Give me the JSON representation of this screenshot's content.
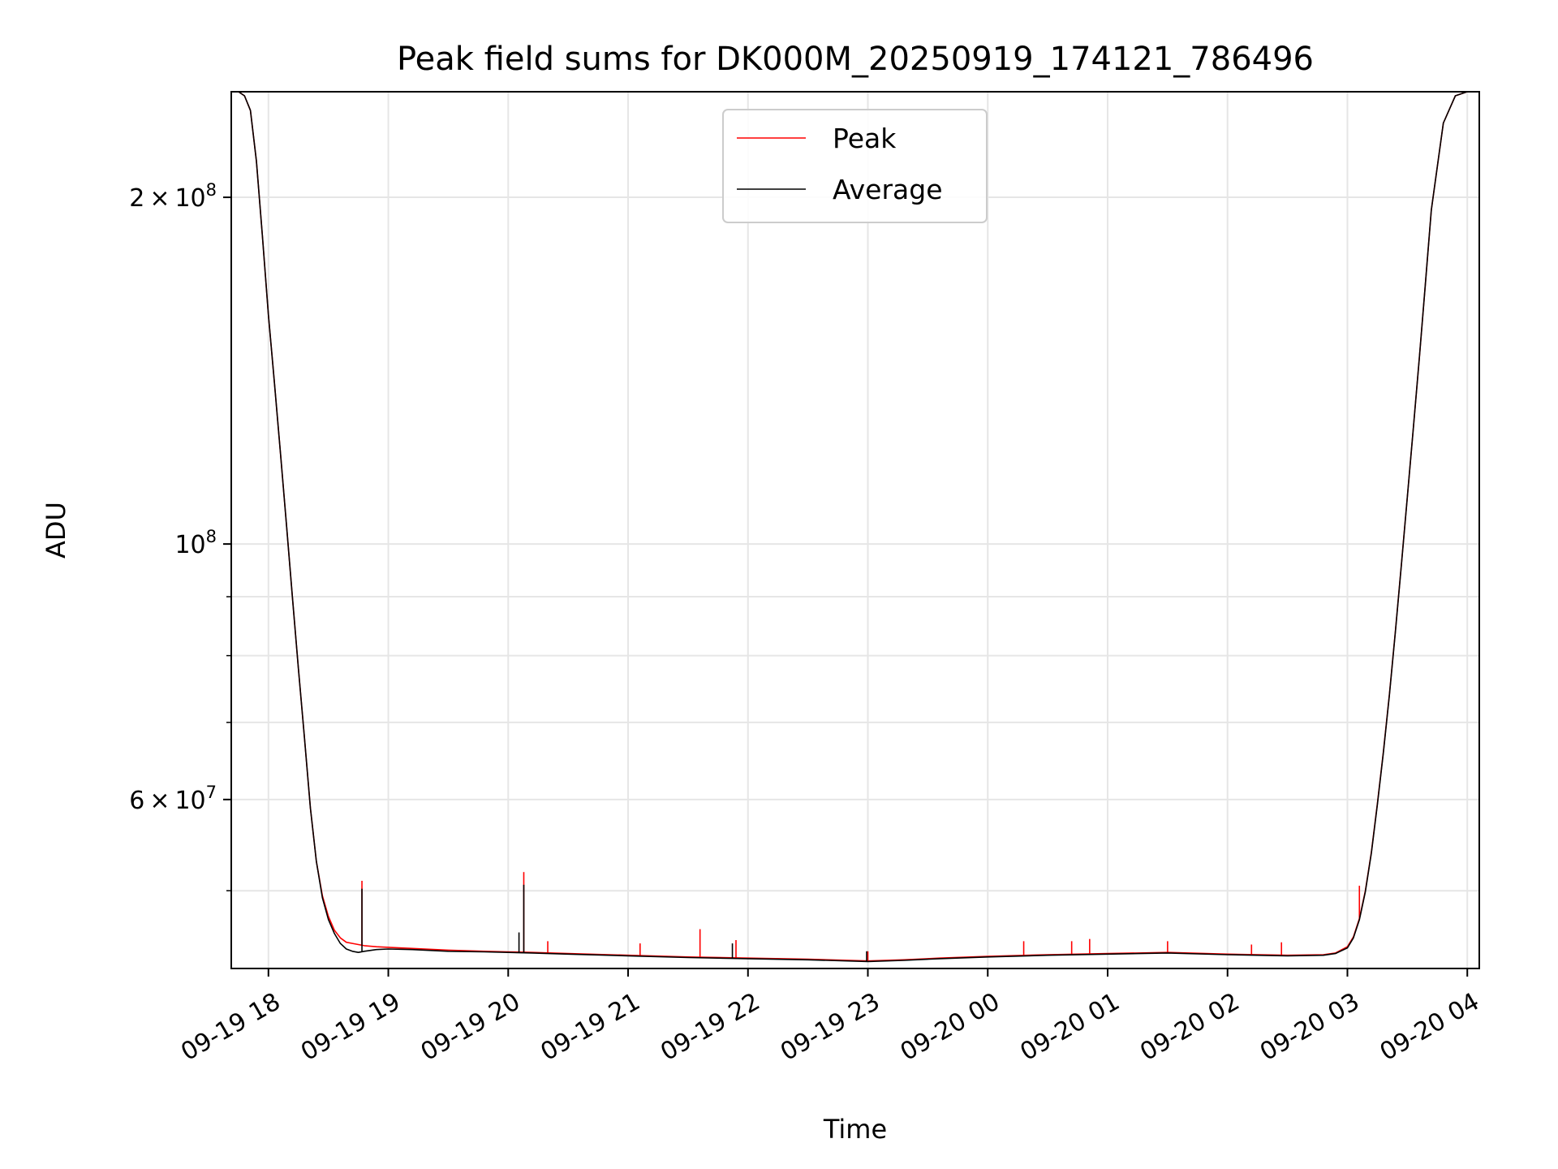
{
  "chart_data": {
    "type": "line",
    "title": "Peak field sums for DK000M_20250919_174121_786496",
    "xlabel": "Time",
    "ylabel": "ADU",
    "yscale": "log",
    "ylim": [
      42800000,
      247000000
    ],
    "xlim_hours": [
      17.69,
      28.1
    ],
    "grid": true,
    "legend_position": "upper center",
    "x_ticks": [
      {
        "hour": 18,
        "label": "09-19 18"
      },
      {
        "hour": 19,
        "label": "09-19 19"
      },
      {
        "hour": 20,
        "label": "09-19 20"
      },
      {
        "hour": 21,
        "label": "09-19 21"
      },
      {
        "hour": 22,
        "label": "09-19 22"
      },
      {
        "hour": 23,
        "label": "09-19 23"
      },
      {
        "hour": 24,
        "label": "09-20 00"
      },
      {
        "hour": 25,
        "label": "09-20 01"
      },
      {
        "hour": 26,
        "label": "09-20 02"
      },
      {
        "hour": 27,
        "label": "09-20 03"
      },
      {
        "hour": 28,
        "label": "09-20 04"
      }
    ],
    "y_major_ticks": [
      {
        "value": 200000000,
        "mant": "2",
        "exp": "8"
      },
      {
        "value": 100000000,
        "mant": "",
        "exp": "8"
      },
      {
        "value": 60000000,
        "mant": "6",
        "exp": "7"
      }
    ],
    "y_minor_grid": [
      50000000,
      70000000,
      80000000,
      90000000
    ],
    "series": [
      {
        "name": "Peak",
        "color": "#ff0000",
        "x_hours": [
          17.69,
          17.75,
          17.8,
          17.85,
          17.9,
          17.95,
          18.0,
          18.05,
          18.1,
          18.15,
          18.2,
          18.25,
          18.3,
          18.35,
          18.4,
          18.45,
          18.5,
          18.55,
          18.6,
          18.65,
          18.7,
          18.75,
          18.8,
          18.9,
          19.0,
          19.2,
          19.5,
          19.8,
          20.0,
          20.2,
          20.5,
          21.0,
          21.5,
          22.0,
          22.5,
          23.0,
          23.3,
          23.6,
          24.0,
          24.5,
          25.0,
          25.5,
          26.0,
          26.5,
          26.8,
          26.9,
          27.0,
          27.05,
          27.1,
          27.15,
          27.2,
          27.25,
          27.3,
          27.35,
          27.4,
          27.45,
          27.5,
          27.55,
          27.6,
          27.65,
          27.7,
          27.8,
          27.9,
          28.0,
          28.1
        ],
        "values": [
          247000000,
          247000000,
          245000000,
          238000000,
          215000000,
          185000000,
          158000000,
          138000000,
          120000000,
          104000000,
          90000000,
          78000000,
          68000000,
          59000000,
          53000000,
          49500000,
          47500000,
          46200000,
          45500000,
          45100000,
          45000000,
          44900000,
          44800000,
          44700000,
          44650000,
          44550000,
          44400000,
          44300000,
          44250000,
          44200000,
          44100000,
          43950000,
          43800000,
          43700000,
          43600000,
          43450000,
          43550000,
          43700000,
          43850000,
          44000000,
          44100000,
          44200000,
          44050000,
          43950000,
          44000000,
          44150000,
          44700000,
          45600000,
          47300000,
          50000000,
          54000000,
          59500000,
          66000000,
          74000000,
          84000000,
          96000000,
          110000000,
          126000000,
          145000000,
          168000000,
          195000000,
          232000000,
          245000000,
          247000000,
          247000000
        ],
        "spikes": [
          {
            "hour": 18.78,
            "value": 51000000
          },
          {
            "hour": 20.13,
            "value": 51900000
          },
          {
            "hour": 21.6,
            "value": 46300000
          },
          {
            "hour": 20.33,
            "value": 45200000
          },
          {
            "hour": 21.1,
            "value": 45000000
          },
          {
            "hour": 21.9,
            "value": 45300000
          },
          {
            "hour": 23.0,
            "value": 44300000
          },
          {
            "hour": 24.3,
            "value": 45200000
          },
          {
            "hour": 24.7,
            "value": 45200000
          },
          {
            "hour": 24.85,
            "value": 45400000
          },
          {
            "hour": 25.5,
            "value": 45200000
          },
          {
            "hour": 26.45,
            "value": 45100000
          },
          {
            "hour": 26.2,
            "value": 44900000
          },
          {
            "hour": 27.1,
            "value": 50500000
          }
        ]
      },
      {
        "name": "Average",
        "color": "#000000",
        "x_hours": [
          17.69,
          17.75,
          17.8,
          17.85,
          17.9,
          17.95,
          18.0,
          18.05,
          18.1,
          18.15,
          18.2,
          18.25,
          18.3,
          18.35,
          18.4,
          18.45,
          18.5,
          18.55,
          18.6,
          18.65,
          18.7,
          18.75,
          18.8,
          18.9,
          19.0,
          19.2,
          19.5,
          19.8,
          20.0,
          20.2,
          20.5,
          21.0,
          21.5,
          22.0,
          22.5,
          23.0,
          23.3,
          23.6,
          24.0,
          24.5,
          25.0,
          25.5,
          26.0,
          26.5,
          26.8,
          26.9,
          27.0,
          27.05,
          27.1,
          27.15,
          27.2,
          27.25,
          27.3,
          27.35,
          27.4,
          27.45,
          27.5,
          27.55,
          27.6,
          27.65,
          27.7,
          27.8,
          27.9,
          28.0,
          28.1
        ],
        "values": [
          247000000,
          247000000,
          245000000,
          238000000,
          215000000,
          185000000,
          158000000,
          138000000,
          120000000,
          104000000,
          90000000,
          78000000,
          68000000,
          59000000,
          53000000,
          49300000,
          47200000,
          45900000,
          45000000,
          44500000,
          44300000,
          44200000,
          44300000,
          44450000,
          44500000,
          44450000,
          44300000,
          44250000,
          44200000,
          44150000,
          44050000,
          43900000,
          43750000,
          43650000,
          43550000,
          43400000,
          43500000,
          43650000,
          43800000,
          43950000,
          44050000,
          44150000,
          44000000,
          43900000,
          43950000,
          44100000,
          44600000,
          45500000,
          47200000,
          49900000,
          53900000,
          59400000,
          65900000,
          73900000,
          83900000,
          95900000,
          110000000,
          126000000,
          145000000,
          168000000,
          195000000,
          232000000,
          245000000,
          247000000,
          247000000
        ],
        "spikes": [
          {
            "hour": 18.78,
            "value": 50200000
          },
          {
            "hour": 20.13,
            "value": 50600000
          },
          {
            "hour": 20.09,
            "value": 46000000
          },
          {
            "hour": 21.87,
            "value": 45000000
          },
          {
            "hour": 22.99,
            "value": 44300000
          }
        ]
      }
    ]
  }
}
